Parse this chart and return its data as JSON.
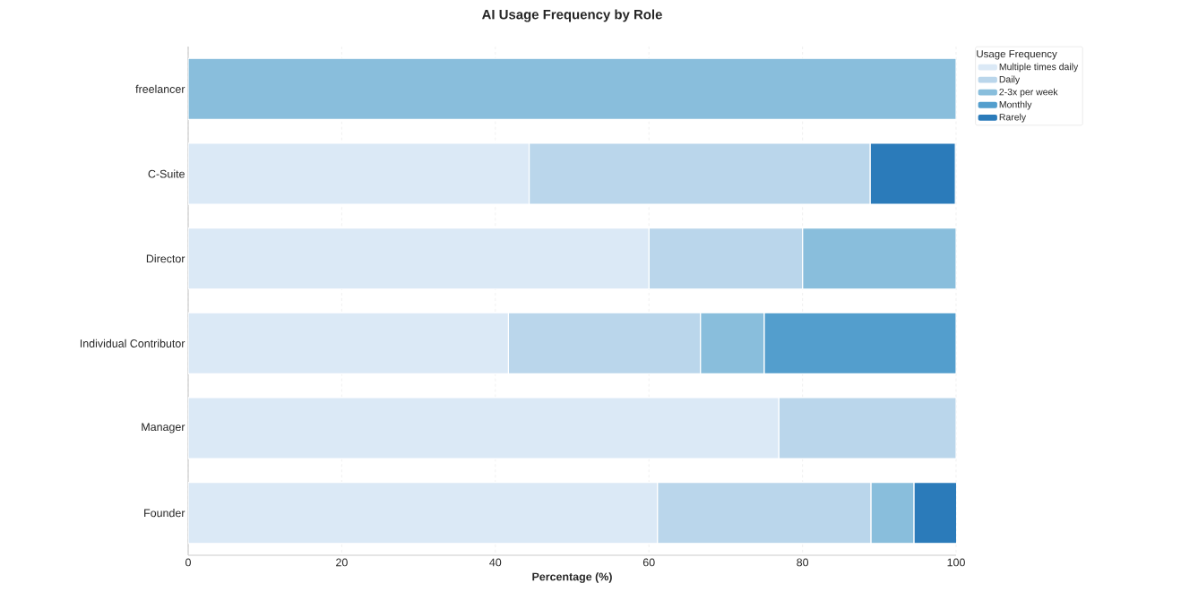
{
  "chart_data": {
    "type": "bar",
    "orientation": "horizontal",
    "stacked": true,
    "title": "AI Usage Frequency by Role",
    "xlabel": "Percentage (%)",
    "legend_title": "Usage Frequency",
    "categories": [
      "freelancer",
      "C-Suite",
      "Director",
      "Individual Contributor",
      "Manager",
      "Founder"
    ],
    "series": [
      {
        "name": "Multiple times daily",
        "color": "#dbe9f6",
        "values": [
          0,
          44.4,
          60,
          41.7,
          76.9,
          61.1
        ]
      },
      {
        "name": "Daily",
        "color": "#bad6eb",
        "values": [
          0,
          44.4,
          20,
          25,
          23.1,
          27.8
        ]
      },
      {
        "name": "2-3x per week",
        "color": "#89bedc",
        "values": [
          100,
          0,
          20,
          8.3,
          0,
          5.6
        ]
      },
      {
        "name": "Monthly",
        "color": "#539ecd",
        "values": [
          0,
          0,
          0,
          25,
          0,
          0
        ]
      },
      {
        "name": "Rarely",
        "color": "#2b7bba",
        "values": [
          0,
          11.1,
          0,
          0,
          0,
          5.6
        ]
      }
    ],
    "xlim": [
      0,
      100
    ],
    "xticks": [
      0,
      20,
      40,
      60,
      80,
      100
    ],
    "grid": "x",
    "legend": "top right"
  }
}
